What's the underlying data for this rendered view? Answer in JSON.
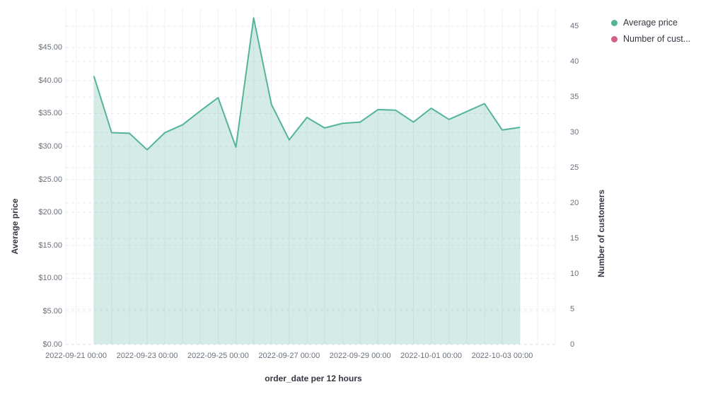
{
  "legend": {
    "items": [
      {
        "label": "Average price",
        "color": "#54b399"
      },
      {
        "label": "Number of cust...",
        "color": "#d36086"
      }
    ]
  },
  "chart_data": {
    "type": "area",
    "title": "",
    "xlabel": "order_date per 12 hours",
    "ylabel_left": "Average price",
    "ylabel_right": "Number of customers",
    "legend_position": "top-right",
    "grid": true,
    "ylim_left": [
      0,
      45
    ],
    "ylim_right": [
      0,
      45
    ],
    "y_left_tick_labels": [
      "$0.00",
      "$5.00",
      "$10.00",
      "$15.00",
      "$20.00",
      "$25.00",
      "$30.00",
      "$35.00",
      "$40.00",
      "$45.00"
    ],
    "y_right_tick_labels": [
      "0",
      "5",
      "10",
      "15",
      "20",
      "25",
      "30",
      "35",
      "40",
      "45"
    ],
    "x_tick_labels": [
      "2022-09-21 00:00",
      "2022-09-23 00:00",
      "2022-09-25 00:00",
      "2022-09-27 00:00",
      "2022-09-29 00:00",
      "2022-10-01 00:00",
      "2022-10-03 00:00"
    ],
    "x": [
      "2022-09-21 12:00",
      "2022-09-22 00:00",
      "2022-09-22 12:00",
      "2022-09-23 00:00",
      "2022-09-23 12:00",
      "2022-09-24 00:00",
      "2022-09-24 12:00",
      "2022-09-25 00:00",
      "2022-09-25 12:00",
      "2022-09-26 00:00",
      "2022-09-26 12:00",
      "2022-09-27 00:00",
      "2022-09-27 12:00",
      "2022-09-28 00:00",
      "2022-09-28 12:00",
      "2022-09-29 00:00",
      "2022-09-29 12:00",
      "2022-09-30 00:00",
      "2022-09-30 12:00",
      "2022-10-01 00:00",
      "2022-10-01 12:00",
      "2022-10-02 00:00",
      "2022-10-02 12:00",
      "2022-10-03 00:00",
      "2022-10-03 12:00"
    ],
    "series": [
      {
        "name": "Average price",
        "axis": "left",
        "color": "#54b399",
        "fill_opacity": 0.25,
        "values": [
          40.7,
          32.1,
          32.0,
          29.5,
          32.1,
          33.3,
          35.4,
          37.4,
          29.9,
          49.5,
          36.4,
          31.0,
          34.4,
          32.8,
          33.5,
          33.7,
          35.6,
          35.5,
          33.7,
          35.8,
          34.1,
          35.3,
          36.5,
          32.5,
          32.9
        ]
      },
      {
        "name": "Number of customers",
        "axis": "right",
        "color": "#d36086",
        "values": []
      }
    ]
  }
}
